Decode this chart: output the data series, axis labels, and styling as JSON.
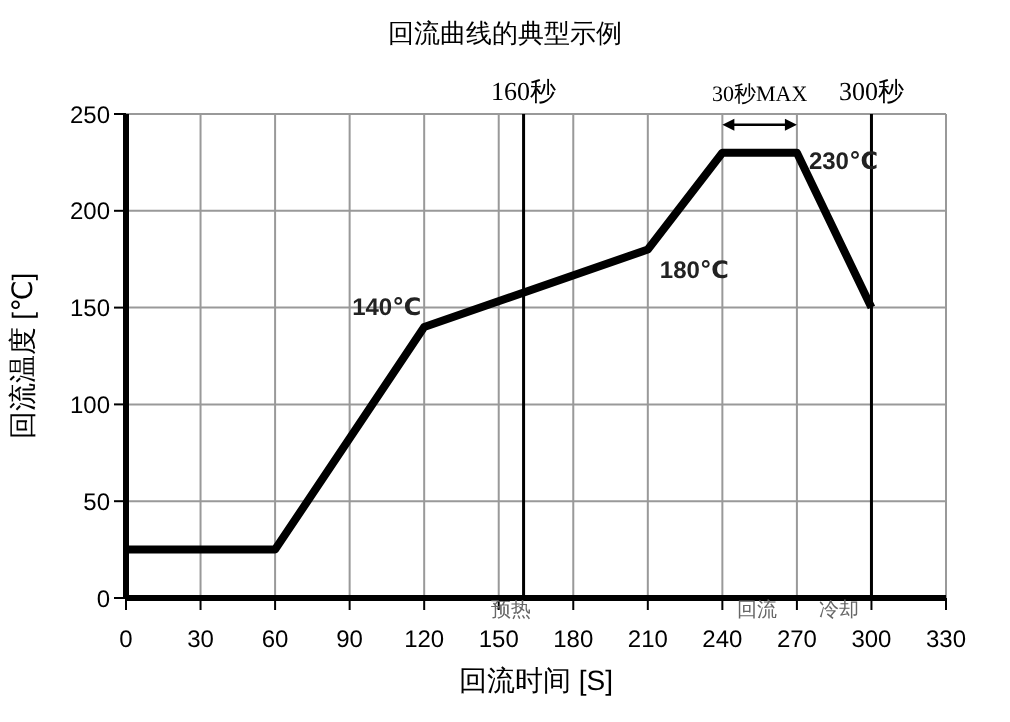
{
  "chart_data": {
    "type": "line",
    "title": "回流曲线的典型示例",
    "xlabel": "回流时间 [S]",
    "ylabel": "回流温度 [℃]",
    "x": [
      0,
      60,
      120,
      210,
      240,
      270,
      300
    ],
    "series": [
      {
        "color": "#000000",
        "values": [
          25,
          25,
          140,
          180,
          230,
          230,
          150
        ]
      }
    ],
    "xlim": [
      0,
      330
    ],
    "xticks": [
      0,
      30,
      60,
      90,
      120,
      150,
      180,
      210,
      240,
      270,
      300,
      330
    ],
    "ylim": [
      0,
      250
    ],
    "yticks": [
      0,
      50,
      100,
      150,
      200,
      250
    ],
    "grid": true,
    "marker": "none",
    "line_style": "solid",
    "ref_lines": [
      {
        "axis": "x",
        "value": 160,
        "label": "160秒",
        "color": "#000000"
      },
      {
        "axis": "x",
        "value": 300,
        "label": "300秒",
        "color": "#000000"
      }
    ],
    "annotations": [
      {
        "text": "140℃",
        "x": 120,
        "y": 140
      },
      {
        "text": "180℃",
        "x": 210,
        "y": 180
      },
      {
        "text": "230℃",
        "x": 270,
        "y": 230
      },
      {
        "text": "30秒MAX",
        "x": 255,
        "y": 230
      },
      "预热",
      "回流",
      "冷却"
    ]
  }
}
